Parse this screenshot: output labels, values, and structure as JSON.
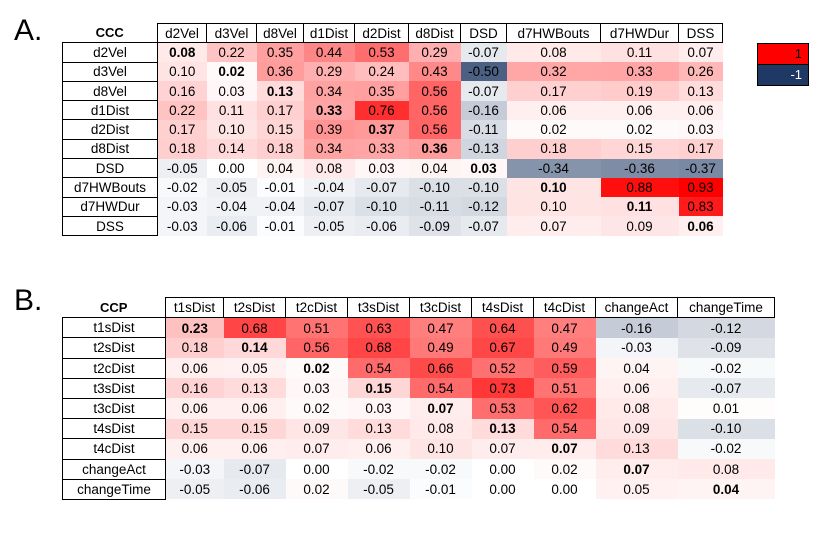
{
  "panels": [
    {
      "letter": "A.",
      "corner": "CCC",
      "cols": [
        "d2Vel",
        "d3Vel",
        "d8Vel",
        "d1Dist",
        "d2Dist",
        "d8Dist",
        "DSD",
        "d7HWBouts",
        "d7HWDur",
        "DSS"
      ],
      "rows": [
        "d2Vel",
        "d3Vel",
        "d8Vel",
        "d1Dist",
        "d2Dist",
        "d8Dist",
        "DSD",
        "d7HWBouts",
        "d7HWDur",
        "DSS"
      ],
      "values": [
        [
          0.08,
          0.22,
          0.35,
          0.44,
          0.53,
          0.29,
          -0.07,
          0.08,
          0.11,
          0.07
        ],
        [
          0.1,
          0.02,
          0.36,
          0.29,
          0.24,
          0.43,
          -0.5,
          0.32,
          0.33,
          0.26
        ],
        [
          0.16,
          0.03,
          0.13,
          0.34,
          0.35,
          0.56,
          -0.07,
          0.17,
          0.19,
          0.13
        ],
        [
          0.22,
          0.11,
          0.17,
          0.33,
          0.76,
          0.56,
          -0.16,
          0.06,
          0.06,
          0.06
        ],
        [
          0.17,
          0.1,
          0.15,
          0.39,
          0.37,
          0.56,
          -0.11,
          0.02,
          0.02,
          0.03
        ],
        [
          0.18,
          0.14,
          0.18,
          0.34,
          0.33,
          0.36,
          -0.13,
          0.18,
          0.15,
          0.17
        ],
        [
          -0.05,
          0.0,
          0.04,
          0.08,
          0.03,
          0.04,
          0.03,
          -0.34,
          -0.36,
          -0.37
        ],
        [
          -0.02,
          -0.05,
          -0.01,
          -0.04,
          -0.07,
          -0.1,
          -0.1,
          0.1,
          0.88,
          0.93
        ],
        [
          -0.03,
          -0.04,
          -0.04,
          -0.07,
          -0.1,
          -0.11,
          -0.12,
          0.1,
          0.11,
          0.83
        ],
        [
          -0.03,
          -0.06,
          -0.01,
          -0.05,
          -0.06,
          -0.09,
          -0.07,
          0.07,
          0.09,
          0.06
        ]
      ]
    },
    {
      "letter": "B.",
      "corner": "CCP",
      "cols": [
        "t1sDist",
        "t2sDist",
        "t2cDist",
        "t3sDist",
        "t3cDist",
        "t4sDist",
        "t4cDist",
        "changeAct",
        "changeTime"
      ],
      "rows": [
        "t1sDist",
        "t2sDist",
        "t2cDist",
        "t3sDist",
        "t3cDist",
        "t4sDist",
        "t4cDist",
        "changeAct",
        "changeTime"
      ],
      "values": [
        [
          0.23,
          0.68,
          0.51,
          0.63,
          0.47,
          0.64,
          0.47,
          -0.16,
          -0.12
        ],
        [
          0.18,
          0.14,
          0.56,
          0.68,
          0.49,
          0.67,
          0.49,
          -0.03,
          -0.09
        ],
        [
          0.06,
          0.05,
          0.02,
          0.54,
          0.66,
          0.52,
          0.59,
          0.04,
          -0.02
        ],
        [
          0.16,
          0.13,
          0.03,
          0.15,
          0.54,
          0.73,
          0.51,
          0.06,
          -0.07
        ],
        [
          0.06,
          0.06,
          0.02,
          0.03,
          0.07,
          0.53,
          0.62,
          0.08,
          0.01
        ],
        [
          0.15,
          0.15,
          0.09,
          0.13,
          0.08,
          0.13,
          0.54,
          0.09,
          -0.1
        ],
        [
          0.06,
          0.06,
          0.07,
          0.06,
          0.1,
          0.07,
          0.07,
          0.13,
          -0.02
        ],
        [
          -0.03,
          -0.07,
          0.0,
          -0.02,
          -0.02,
          0.0,
          0.02,
          0.07,
          0.08
        ],
        [
          -0.05,
          -0.06,
          0.02,
          -0.05,
          -0.01,
          0.0,
          0.0,
          0.05,
          0.04
        ]
      ]
    }
  ],
  "chart_data": [
    {
      "type": "heatmap",
      "title": "CCC",
      "x": [
        "d2Vel",
        "d3Vel",
        "d8Vel",
        "d1Dist",
        "d2Dist",
        "d8Dist",
        "DSD",
        "d7HWBouts",
        "d7HWDur",
        "DSS"
      ],
      "y": [
        "d2Vel",
        "d3Vel",
        "d8Vel",
        "d1Dist",
        "d2Dist",
        "d8Dist",
        "DSD",
        "d7HWBouts",
        "d7HWDur",
        "DSS"
      ],
      "diagonal_bold": true,
      "color_scale": {
        "min": -1,
        "max": 1,
        "min_color": "#1f3864",
        "mid_color": "#ffffff",
        "max_color": "#ff0000"
      }
    },
    {
      "type": "heatmap",
      "title": "CCP",
      "x": [
        "t1sDist",
        "t2sDist",
        "t2cDist",
        "t3sDist",
        "t3cDist",
        "t4sDist",
        "t4cDist",
        "changeAct",
        "changeTime"
      ],
      "y": [
        "t1sDist",
        "t2sDist",
        "t2cDist",
        "t3sDist",
        "t3cDist",
        "t4sDist",
        "t4cDist",
        "changeAct",
        "changeTime"
      ],
      "diagonal_bold": true,
      "color_scale": {
        "min": -1,
        "max": 1,
        "min_color": "#1f3864",
        "mid_color": "#ffffff",
        "max_color": "#ff0000"
      }
    }
  ],
  "legend": {
    "max_label": "1",
    "min_label": "-1",
    "max_color": "#ff0000",
    "min_color": "#1f3864"
  }
}
